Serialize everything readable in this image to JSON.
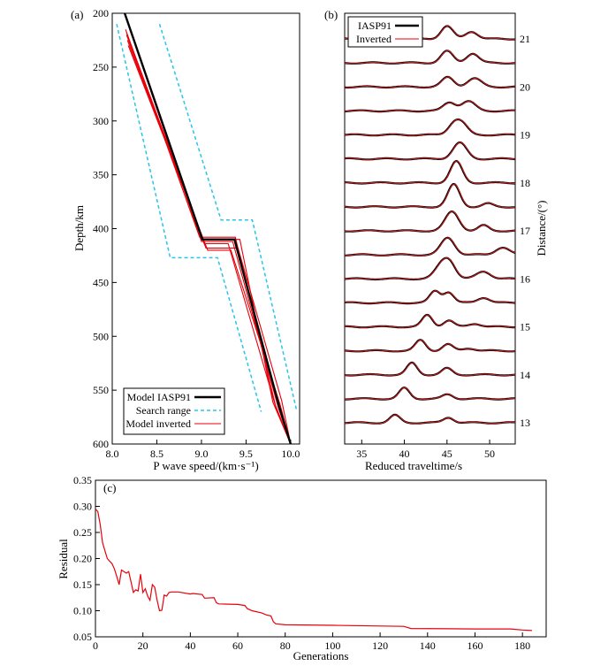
{
  "colors": {
    "reference": "#000000",
    "inverted": "#e8000b",
    "search": "#29c5e6",
    "trace_inverted": "#d01c1c"
  },
  "chart_data": [
    {
      "type": "line",
      "panel_label": "(a)",
      "xlabel": "P wave speed/(km·s⁻¹)",
      "ylabel": "Depth/km",
      "xlim": [
        8.0,
        10.1
      ],
      "ylim": [
        600,
        200
      ],
      "x_ticks": [
        "8.0",
        "8.5",
        "9.0",
        "9.5",
        "10.0"
      ],
      "y_ticks": [
        "200",
        "250",
        "300",
        "350",
        "400",
        "450",
        "500",
        "550",
        "600"
      ],
      "x_tick_values": [
        8.0,
        8.5,
        9.0,
        9.5,
        10.0
      ],
      "y_tick_values": [
        200,
        250,
        300,
        350,
        400,
        450,
        500,
        550,
        600
      ],
      "legend": [
        "Model IASP91",
        "Search range",
        "Model inverted"
      ],
      "legend_position": "bottom-right",
      "series": [
        {
          "name": "Model IASP91",
          "style": "reference",
          "x": [
            8.14,
            9.01,
            9.37,
            9.87,
            10.0
          ],
          "y": [
            200,
            410,
            410,
            565,
            600
          ]
        },
        {
          "name": "Search range lower",
          "style": "search",
          "x": [
            8.05,
            8.65,
            9.18,
            9.67
          ],
          "y": [
            210,
            427,
            427,
            570
          ]
        },
        {
          "name": "Search range upper",
          "style": "search",
          "x": [
            8.53,
            9.22,
            9.57,
            10.07
          ],
          "y": [
            210,
            392,
            392,
            570
          ]
        }
      ],
      "inverted_models": [
        {
          "x": [
            8.14,
            9.0,
            9.35,
            9.86,
            10.0
          ],
          "y": [
            200,
            412,
            412,
            566,
            600
          ]
        },
        {
          "x": [
            8.16,
            9.03,
            9.3,
            9.82,
            10.0
          ],
          "y": [
            220,
            414,
            414,
            562,
            600
          ]
        },
        {
          "x": [
            8.17,
            9.05,
            9.41,
            9.9,
            10.0
          ],
          "y": [
            225,
            418,
            418,
            560,
            600
          ]
        },
        {
          "x": [
            8.15,
            8.98,
            9.38,
            9.84,
            10.0
          ],
          "y": [
            215,
            408,
            408,
            568,
            600
          ]
        },
        {
          "x": [
            8.18,
            9.07,
            9.33,
            9.88,
            10.0
          ],
          "y": [
            230,
            420,
            420,
            563,
            600
          ]
        },
        {
          "x": [
            8.16,
            9.02,
            9.43,
            9.8,
            10.0
          ],
          "y": [
            218,
            410,
            410,
            561,
            600
          ]
        }
      ]
    },
    {
      "type": "line",
      "panel_label": "(b)",
      "xlabel": "Reduced traveltime/s",
      "ylabel": "Distance/(°)",
      "xlim": [
        33,
        53
      ],
      "x_ticks": [
        "35",
        "40",
        "45",
        "50"
      ],
      "x_tick_values": [
        35,
        40,
        45,
        50
      ],
      "y_ticks": [
        "13",
        "14",
        "15",
        "16",
        "17",
        "18",
        "19",
        "20",
        "21"
      ],
      "legend": [
        "IASP91",
        "Inverted"
      ],
      "legend_position": "top-left",
      "traces": [
        {
          "distance": 21.0,
          "peaks": [
            [
              45.0,
              0.6,
              0.7
            ],
            [
              47.9,
              0.35,
              0.7
            ]
          ]
        },
        {
          "distance": 20.5,
          "peaks": [
            [
              45.0,
              0.55,
              0.7
            ],
            [
              48.0,
              0.45,
              0.7
            ]
          ]
        },
        {
          "distance": 20.0,
          "peaks": [
            [
              45.1,
              0.45,
              0.7
            ],
            [
              48.2,
              0.4,
              0.8
            ]
          ]
        },
        {
          "distance": 19.5,
          "peaks": [
            [
              45.3,
              0.4,
              0.7
            ],
            [
              47.5,
              0.45,
              0.8
            ]
          ]
        },
        {
          "distance": 19.0,
          "peaks": [
            [
              45.8,
              0.5,
              0.7
            ],
            [
              46.8,
              0.45,
              0.7
            ]
          ]
        },
        {
          "distance": 18.5,
          "peaks": [
            [
              46.5,
              0.75,
              0.8
            ]
          ]
        },
        {
          "distance": 18.0,
          "peaks": [
            [
              46.1,
              1.0,
              0.7
            ]
          ]
        },
        {
          "distance": 17.5,
          "peaks": [
            [
              45.8,
              1.05,
              0.7
            ],
            [
              49.8,
              0.15,
              0.6
            ]
          ]
        },
        {
          "distance": 17.0,
          "peaks": [
            [
              45.6,
              0.9,
              0.8
            ],
            [
              49.3,
              0.25,
              0.6
            ]
          ]
        },
        {
          "distance": 16.5,
          "peaks": [
            [
              45.1,
              0.8,
              0.8
            ],
            [
              51.5,
              0.35,
              0.8
            ]
          ]
        },
        {
          "distance": 16.0,
          "peaks": [
            [
              44.4,
              0.65,
              0.8
            ],
            [
              45.4,
              0.6,
              0.7
            ],
            [
              49.3,
              0.35,
              0.8
            ]
          ]
        },
        {
          "distance": 15.5,
          "peaks": [
            [
              43.6,
              0.55,
              0.6
            ],
            [
              45.2,
              0.5,
              0.6
            ],
            [
              49.3,
              0.25,
              0.7
            ]
          ]
        },
        {
          "distance": 15.0,
          "peaks": [
            [
              42.7,
              0.55,
              0.6
            ],
            [
              45.2,
              0.3,
              0.6
            ],
            [
              48.3,
              0.15,
              0.7
            ]
          ]
        },
        {
          "distance": 14.5,
          "peaks": [
            [
              41.9,
              0.5,
              0.6
            ],
            [
              45.1,
              0.3,
              0.6
            ],
            [
              47.6,
              0.12,
              0.7
            ]
          ]
        },
        {
          "distance": 14.0,
          "peaks": [
            [
              40.9,
              0.55,
              0.6
            ],
            [
              45.0,
              0.3,
              0.6
            ]
          ]
        },
        {
          "distance": 13.5,
          "peaks": [
            [
              40.0,
              0.5,
              0.6
            ],
            [
              45.1,
              0.2,
              0.6
            ]
          ]
        },
        {
          "distance": 13.0,
          "peaks": [
            [
              38.9,
              0.35,
              0.6
            ],
            [
              45.2,
              0.25,
              0.6
            ]
          ]
        }
      ]
    },
    {
      "type": "line",
      "panel_label": "(c)",
      "xlabel": "Generations",
      "ylabel": "Residual",
      "xlim": [
        0,
        190
      ],
      "ylim": [
        0.05,
        0.35
      ],
      "x_ticks": [
        "0",
        "20",
        "40",
        "60",
        "80",
        "100",
        "120",
        "140",
        "160",
        "180"
      ],
      "x_tick_values": [
        0,
        20,
        40,
        60,
        80,
        100,
        120,
        140,
        160,
        180
      ],
      "y_ticks": [
        "0.05",
        "0.10",
        "0.15",
        "0.20",
        "0.25",
        "0.30",
        "0.35"
      ],
      "y_tick_values": [
        0.05,
        0.1,
        0.15,
        0.2,
        0.25,
        0.3,
        0.35
      ],
      "series": [
        {
          "name": "Residual",
          "x": [
            0,
            1,
            2,
            3,
            4,
            5,
            6,
            7,
            8,
            9,
            10,
            11,
            12,
            13,
            14,
            15,
            16,
            17,
            18,
            19,
            20,
            21,
            22,
            23,
            24,
            25,
            26,
            27,
            28,
            29,
            30,
            31,
            32,
            35,
            40,
            41,
            45,
            46,
            50,
            51,
            52,
            60,
            63,
            64,
            66,
            70,
            72,
            74,
            75,
            76,
            80,
            100,
            130,
            133,
            160,
            175,
            180,
            184
          ],
          "y": [
            0.295,
            0.29,
            0.265,
            0.23,
            0.215,
            0.2,
            0.195,
            0.19,
            0.18,
            0.165,
            0.15,
            0.178,
            0.175,
            0.172,
            0.175,
            0.155,
            0.135,
            0.14,
            0.138,
            0.17,
            0.135,
            0.142,
            0.128,
            0.12,
            0.15,
            0.145,
            0.12,
            0.1,
            0.101,
            0.13,
            0.128,
            0.135,
            0.136,
            0.136,
            0.132,
            0.133,
            0.131,
            0.124,
            0.125,
            0.115,
            0.113,
            0.112,
            0.11,
            0.104,
            0.1,
            0.096,
            0.092,
            0.09,
            0.079,
            0.075,
            0.073,
            0.072,
            0.07,
            0.066,
            0.065,
            0.065,
            0.063,
            0.062
          ]
        }
      ]
    }
  ]
}
